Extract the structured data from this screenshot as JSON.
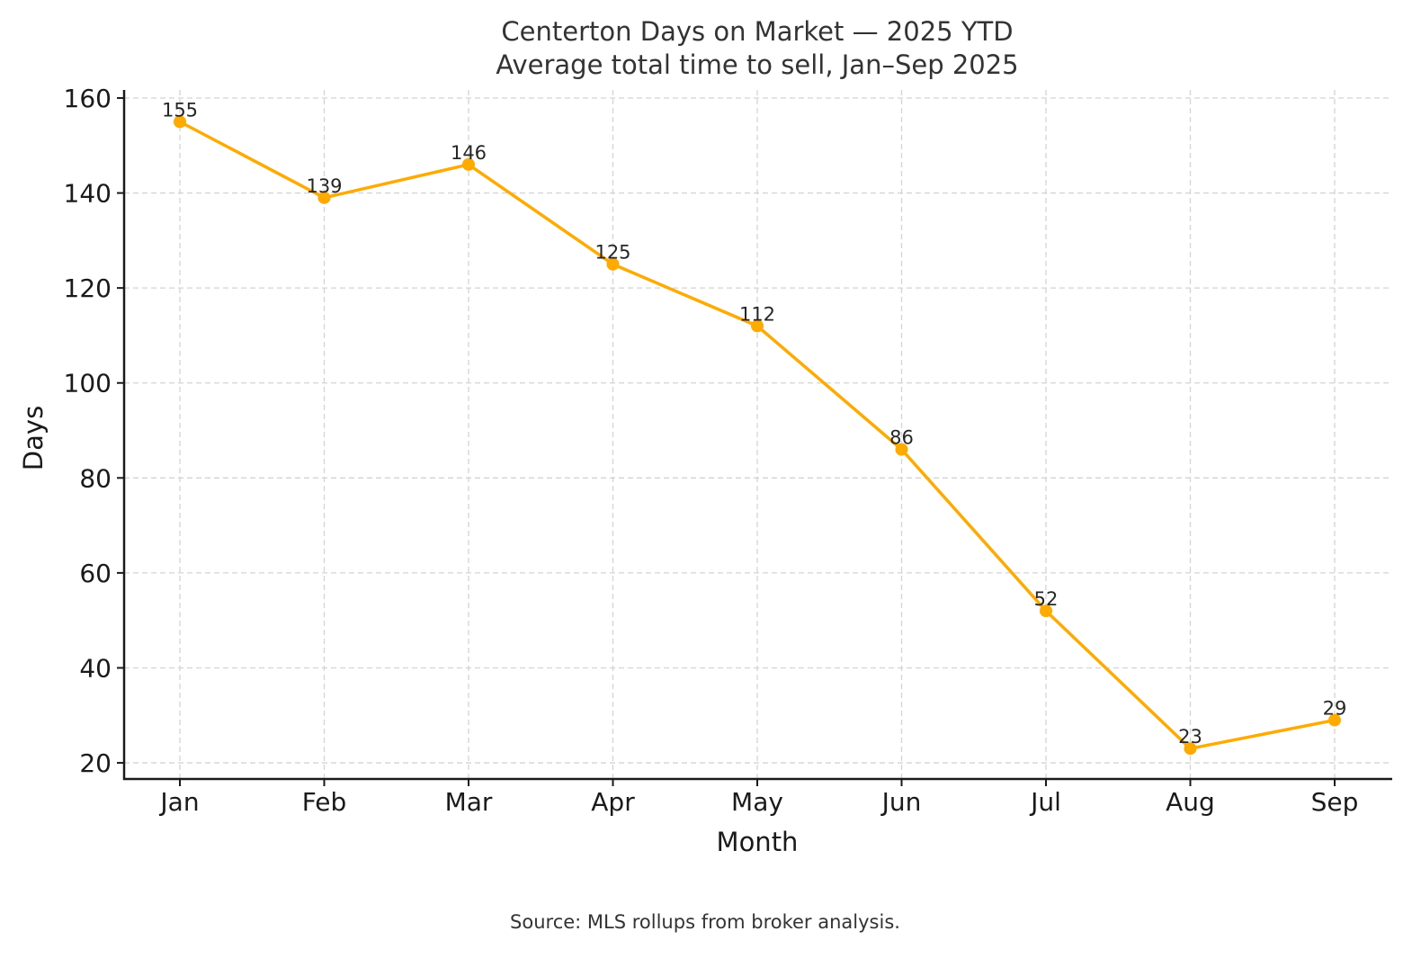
{
  "chart_data": {
    "type": "line",
    "title": "Centerton Days on Market — 2025 YTD",
    "subtitle": "Average total time to sell, Jan–Sep 2025",
    "xlabel": "Month",
    "ylabel": "Days",
    "categories": [
      "Jan",
      "Feb",
      "Mar",
      "Apr",
      "May",
      "Jun",
      "Jul",
      "Aug",
      "Sep"
    ],
    "series": [
      {
        "name": "Days on Market",
        "values": [
          155,
          139,
          146,
          125,
          112,
          86,
          52,
          23,
          29
        ],
        "color": "#FFAA00"
      }
    ],
    "y_ticks": [
      20,
      40,
      60,
      80,
      100,
      120,
      140,
      160
    ],
    "ylim": [
      16.6,
      161.7
    ],
    "grid": true,
    "legend": "none",
    "data_labels": true,
    "source_note": "Source: MLS rollups from broker analysis."
  }
}
